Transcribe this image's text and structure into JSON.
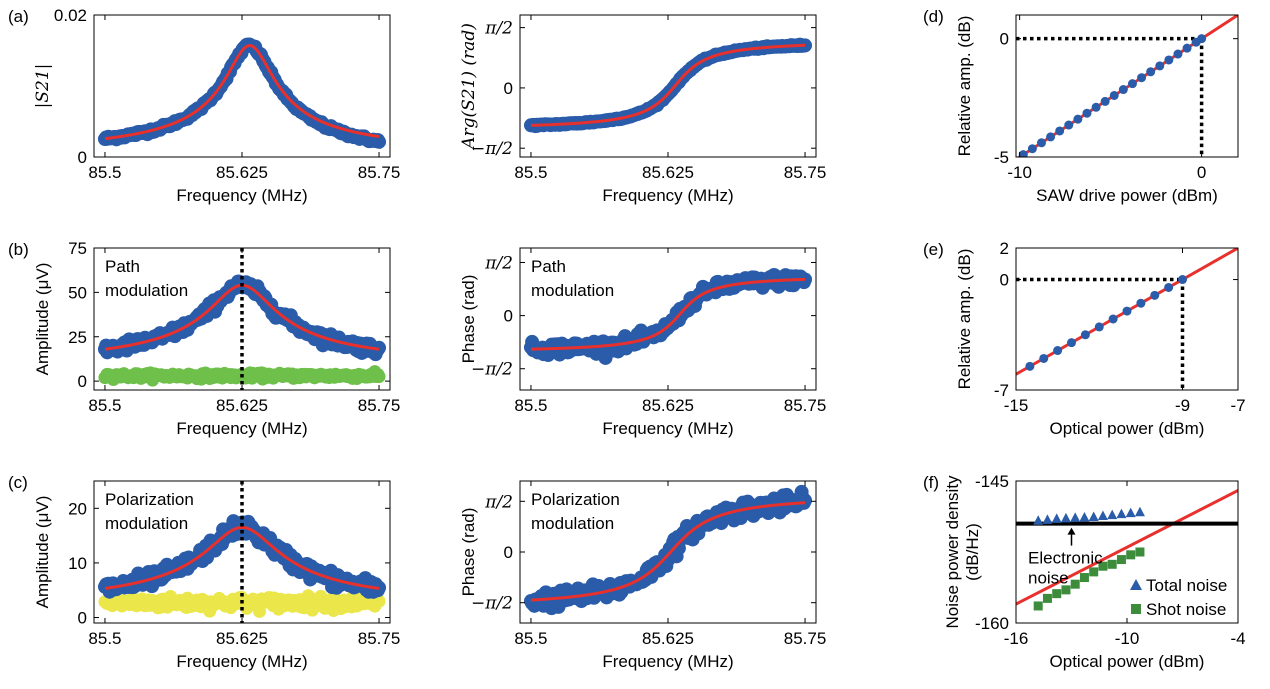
{
  "chart_data": [
    {
      "id": "a_left",
      "panel_label": "(a)",
      "type": "scatter",
      "xlabel": "Frequency (MHz)",
      "ylabel": "|S21|",
      "ylabel_style": "math",
      "xlim": [
        85.49,
        85.76
      ],
      "ylim": [
        0,
        0.02
      ],
      "xticks": [
        85.5,
        85.625,
        85.75
      ],
      "xticklabels": [
        "85.5",
        "85.625",
        "85.75"
      ],
      "yticks": [
        0,
        0.02
      ],
      "yticklabels": [
        "0",
        "0.02"
      ],
      "model": {
        "kind": "lorentz_amp",
        "f0": 85.632,
        "gamma": 0.022,
        "amp": 0.0157,
        "base": 0,
        "offset": 0.0
      },
      "series": [
        {
          "role": "data",
          "color": "#2a5caa",
          "x_range": [
            85.5,
            85.75
          ],
          "noise": 0.00015,
          "offset": -0.0008,
          "tail": 0.0007
        },
        {
          "role": "fit",
          "color": "#e8302d"
        }
      ]
    },
    {
      "id": "a_right",
      "panel_label": "",
      "type": "scatter",
      "xlabel": "Frequency (MHz)",
      "ylabel": "Arg(S21) (rad)",
      "ylabel_style": "math",
      "xlim": [
        85.49,
        85.76
      ],
      "ylim": [
        -1.8,
        1.9
      ],
      "xticks": [
        85.5,
        85.625,
        85.75
      ],
      "xticklabels": [
        "85.5",
        "85.625",
        "85.75"
      ],
      "yticks": [
        -1.5708,
        0,
        1.5708
      ],
      "yticklabels": [
        "−π/2",
        "0",
        "π/2"
      ],
      "model": {
        "kind": "phase",
        "f0": 85.632,
        "gamma": 0.022,
        "lo": -1.1,
        "hi": 1.25,
        "offset": 0.0
      },
      "series": [
        {
          "role": "data",
          "color": "#2a5caa",
          "x_range": [
            85.5,
            85.75
          ],
          "noise": 0.01
        },
        {
          "role": "fit",
          "color": "#e8302d"
        }
      ]
    },
    {
      "id": "b_left",
      "panel_label": "(b)",
      "type": "scatter",
      "xlabel": "Frequency (MHz)",
      "ylabel": "Amplitude (μV)",
      "ylabel_style": "text",
      "annotation": [
        "Path",
        "modulation"
      ],
      "xlim": [
        85.49,
        85.76
      ],
      "ylim": [
        -5,
        75
      ],
      "xticks": [
        85.5,
        85.625,
        85.75
      ],
      "xticklabels": [
        "85.5",
        "85.625",
        "85.75"
      ],
      "yticks": [
        0,
        25,
        50,
        75
      ],
      "yticklabels": [
        "0",
        "25",
        "50",
        "75"
      ],
      "vline": 85.625,
      "model": {
        "kind": "lorentz_amp",
        "f0": 85.625,
        "gamma": 0.03,
        "amp": 47,
        "base": 7,
        "offset": 0.0
      },
      "series": [
        {
          "role": "data",
          "color": "#2a5caa",
          "x_range": [
            85.5,
            85.75
          ],
          "noise": 1.6
        },
        {
          "role": "background",
          "color": "#6ec04b",
          "x_range": [
            85.5,
            85.75
          ],
          "level": 3,
          "noise": 1.2
        },
        {
          "role": "fit",
          "color": "#e8302d"
        }
      ]
    },
    {
      "id": "b_right",
      "panel_label": "",
      "type": "scatter",
      "xlabel": "Frequency (MHz)",
      "ylabel": "Phase (rad)",
      "ylabel_style": "text",
      "annotation": [
        "Path",
        "modulation"
      ],
      "xlim": [
        85.49,
        85.76
      ],
      "ylim": [
        -2.2,
        2.0
      ],
      "xticks": [
        85.5,
        85.625,
        85.75
      ],
      "xticklabels": [
        "85.5",
        "85.625",
        "85.75"
      ],
      "yticks": [
        -1.5708,
        0,
        1.5708
      ],
      "yticklabels": [
        "−π/2",
        "0",
        "π/2"
      ],
      "model": {
        "kind": "phase",
        "f0": 85.636,
        "gamma": 0.02,
        "lo": -1.1,
        "hi": 1.2,
        "offset": 0.0
      },
      "series": [
        {
          "role": "data",
          "color": "#2a5caa",
          "x_range": [
            85.5,
            85.75
          ],
          "noise": 0.09
        },
        {
          "role": "fit",
          "color": "#e8302d"
        }
      ]
    },
    {
      "id": "c_left",
      "panel_label": "(c)",
      "type": "scatter",
      "xlabel": "Frequency (MHz)",
      "ylabel": "Amplitude (μV)",
      "ylabel_style": "text",
      "annotation": [
        "Polarization",
        "modulation"
      ],
      "xlim": [
        85.49,
        85.76
      ],
      "ylim": [
        -1,
        25
      ],
      "xticks": [
        85.5,
        85.625,
        85.75
      ],
      "xticklabels": [
        "85.5",
        "85.625",
        "85.75"
      ],
      "yticks": [
        0,
        10,
        20
      ],
      "yticklabels": [
        "0",
        "10",
        "20"
      ],
      "vline": 85.625,
      "model": {
        "kind": "lorentz_amp",
        "f0": 85.625,
        "gamma": 0.033,
        "amp": 15,
        "base": 1.5,
        "offset": 0.0
      },
      "series": [
        {
          "role": "data",
          "color": "#2a5caa",
          "x_range": [
            85.5,
            85.75
          ],
          "noise": 0.7
        },
        {
          "role": "background",
          "color": "#ebe74a",
          "x_range": [
            85.5,
            85.75
          ],
          "level": 2.7,
          "noise": 0.9
        },
        {
          "role": "fit",
          "color": "#e8302d"
        }
      ]
    },
    {
      "id": "c_right",
      "panel_label": "",
      "type": "scatter",
      "xlabel": "Frequency (MHz)",
      "ylabel": "Phase (rad)",
      "ylabel_style": "text",
      "annotation": [
        "Polarization",
        "modulation"
      ],
      "xlim": [
        85.49,
        85.76
      ],
      "ylim": [
        -2.2,
        2.2
      ],
      "xticks": [
        85.5,
        85.625,
        85.75
      ],
      "xticklabels": [
        "85.5",
        "85.625",
        "85.75"
      ],
      "yticks": [
        -1.5708,
        0,
        1.5708
      ],
      "yticklabels": [
        "−π/2",
        "0",
        "π/2"
      ],
      "model": {
        "kind": "phase",
        "f0": 85.628,
        "gamma": 0.03,
        "lo": -1.75,
        "hi": 1.8,
        "offset": 0.0
      },
      "series": [
        {
          "role": "data",
          "color": "#2a5caa",
          "x_range": [
            85.5,
            85.75
          ],
          "noise": 0.13
        },
        {
          "role": "fit",
          "color": "#e8302d"
        }
      ]
    },
    {
      "id": "d",
      "panel_label": "(d)",
      "type": "scatter",
      "xlabel": "SAW drive power (dBm)",
      "ylabel": "Relative amp. (dB)",
      "ylabel_style": "text",
      "xlim": [
        -10.2,
        2
      ],
      "ylim": [
        -5,
        1
      ],
      "xticks": [
        -10,
        0
      ],
      "xticklabels": [
        "-10",
        "0"
      ],
      "yticks": [
        -5,
        0
      ],
      "yticklabels": [
        "-5",
        "0"
      ],
      "dotted_guide": {
        "x": 0,
        "y": 0
      },
      "line": {
        "slope": 0.5,
        "intercept": 0,
        "color": "#e8302d"
      },
      "series": [
        {
          "role": "points",
          "color": "#2a5caa",
          "marker": "circle",
          "x": [
            -9.8,
            -9.3,
            -8.8,
            -8.3,
            -7.8,
            -7.3,
            -6.8,
            -6.3,
            -5.8,
            -5.3,
            -4.8,
            -4.3,
            -3.8,
            -3.3,
            -2.8,
            -2.3,
            -1.8,
            -1.3,
            -0.8,
            -0.3,
            0
          ],
          "y": [
            -4.9,
            -4.65,
            -4.4,
            -4.15,
            -3.9,
            -3.65,
            -3.4,
            -3.15,
            -2.9,
            -2.65,
            -2.4,
            -2.15,
            -1.9,
            -1.65,
            -1.4,
            -1.15,
            -0.9,
            -0.65,
            -0.4,
            -0.15,
            0
          ]
        }
      ]
    },
    {
      "id": "e",
      "panel_label": "(e)",
      "type": "scatter",
      "xlabel": "Optical power (dBm)",
      "ylabel": "Relative amp. (dB)",
      "ylabel_style": "text",
      "xlim": [
        -15,
        -7
      ],
      "ylim": [
        -7,
        2
      ],
      "xticks": [
        -15,
        -9,
        -7
      ],
      "xticklabels": [
        "-15",
        "-9",
        "-7"
      ],
      "yticks": [
        -7,
        0,
        2
      ],
      "yticklabels": [
        "-7",
        "0",
        "2"
      ],
      "dotted_guide": {
        "x": -9,
        "y": 0
      },
      "line": {
        "slope": 1,
        "intercept": 9,
        "color": "#e8302d"
      },
      "series": [
        {
          "role": "points",
          "color": "#2a5caa",
          "marker": "circle",
          "x": [
            -14.5,
            -14.0,
            -13.5,
            -13.0,
            -12.5,
            -12.0,
            -11.5,
            -11.0,
            -10.5,
            -10.0,
            -9.5,
            -9.0
          ],
          "y": [
            -5.5,
            -5.0,
            -4.5,
            -4.0,
            -3.5,
            -3.0,
            -2.5,
            -2.0,
            -1.5,
            -1.0,
            -0.5,
            0
          ]
        }
      ]
    },
    {
      "id": "f",
      "panel_label": "(f)",
      "type": "scatter",
      "xlabel": "Optical power (dBm)",
      "ylabel": "Noise power  density",
      "ylabel2": "(dB/Hz)",
      "ylabel_style": "text",
      "xlim": [
        -16,
        -4
      ],
      "ylim": [
        -160,
        -145
      ],
      "xticks": [
        -16,
        -10,
        -4
      ],
      "xticklabels": [
        "-16",
        "-10",
        "-4"
      ],
      "yticks": [
        -160,
        -145
      ],
      "yticklabels": [
        "-160",
        "-145"
      ],
      "hline": {
        "y": -149.5,
        "color": "#000000"
      },
      "hline_label": [
        "Electronic",
        "noise"
      ],
      "line": {
        "slope": 1,
        "intercept": -142,
        "color": "#e8302d"
      },
      "legend": {
        "position": "lower-right",
        "entries": [
          "Total noise",
          "Shot noise"
        ]
      },
      "series": [
        {
          "name": "Total noise",
          "role": "points",
          "color": "#2a5caa",
          "marker": "triangle",
          "x": [
            -14.8,
            -14.3,
            -13.8,
            -13.3,
            -12.8,
            -12.3,
            -11.8,
            -11.3,
            -10.8,
            -10.3,
            -9.8,
            -9.3
          ],
          "y": [
            -149.2,
            -149.1,
            -149.0,
            -148.95,
            -148.9,
            -148.85,
            -148.8,
            -148.7,
            -148.6,
            -148.5,
            -148.4,
            -148.3
          ]
        },
        {
          "name": "Shot noise",
          "role": "points",
          "color": "#3c8c3c",
          "marker": "square",
          "x": [
            -14.8,
            -14.3,
            -13.8,
            -13.3,
            -12.8,
            -12.3,
            -11.8,
            -11.3,
            -10.8,
            -10.3,
            -9.8,
            -9.3
          ],
          "y": [
            -158.2,
            -157.4,
            -156.9,
            -156.5,
            -155.9,
            -155.2,
            -154.6,
            -154.0,
            -153.8,
            -153.3,
            -152.8,
            -152.5
          ]
        }
      ]
    }
  ]
}
